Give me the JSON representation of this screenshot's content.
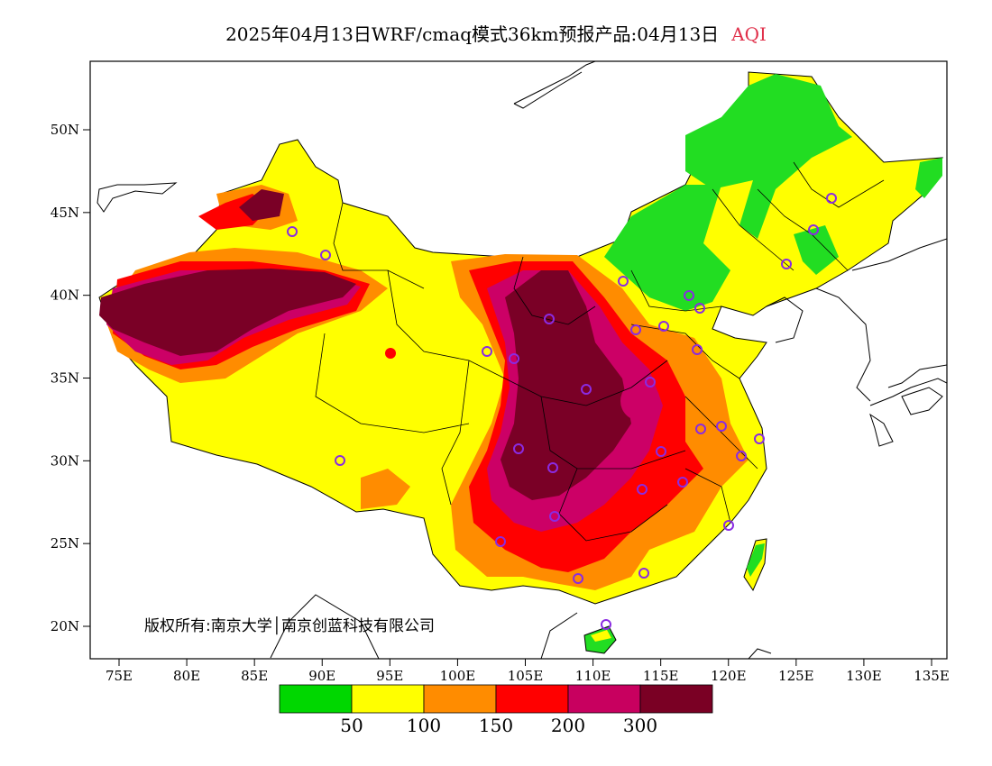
{
  "title": {
    "main": "2025年04月13日WRF/cmaq模式36km预报产品:04月13日",
    "variable": "AQI"
  },
  "copyright": "版权所有:南京大学│南京创蓝科技有限公司",
  "axes": {
    "x_ticks": [
      "75E",
      "80E",
      "85E",
      "90E",
      "95E",
      "100E",
      "105E",
      "110E",
      "115E",
      "120E",
      "125E",
      "130E",
      "135E"
    ],
    "y_ticks": [
      "50N",
      "45N",
      "40N",
      "35N",
      "30N",
      "25N",
      "20N"
    ]
  },
  "legend": {
    "colors": [
      "#00d700",
      "#ffff00",
      "#ff8c00",
      "#ff0000",
      "#c8005f",
      "#7a0024"
    ],
    "labels": [
      "50",
      "100",
      "150",
      "200",
      "300"
    ]
  },
  "colors": {
    "good": "#22dd22",
    "moderate": "#ffff00",
    "sensitive": "#ff8c00",
    "unhealthy": "#ff0000",
    "very_unhealthy": "#cc0066",
    "hazardous": "#7a0026",
    "station_marker": "#8a2be2"
  }
}
